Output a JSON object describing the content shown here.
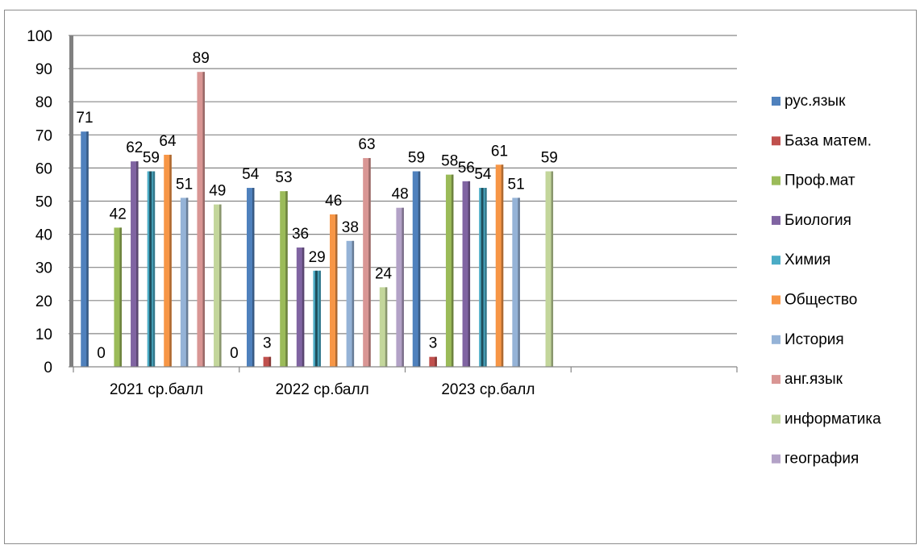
{
  "chart_data": {
    "type": "bar",
    "categories": [
      "2021 ср.балл",
      "2022 ср.балл",
      "2023 ср.балл",
      ""
    ],
    "ylim": [
      0,
      100
    ],
    "yticks": [
      0,
      10,
      20,
      30,
      40,
      50,
      60,
      70,
      80,
      90,
      100
    ],
    "grid": true,
    "legend_position": "right",
    "series": [
      {
        "name": "рус.язык",
        "color": "#4f81bd",
        "values": [
          71,
          54,
          59,
          null
        ]
      },
      {
        "name": "База матем.",
        "color": "#c0504d",
        "values": [
          0,
          3,
          3,
          null
        ]
      },
      {
        "name": "Проф.мат",
        "color": "#9bbb59",
        "values": [
          42,
          53,
          58,
          null
        ]
      },
      {
        "name": "Биология",
        "color": "#8064a2",
        "values": [
          62,
          36,
          56,
          null
        ]
      },
      {
        "name": "Химия",
        "color": "#4bacc6",
        "values": [
          59,
          29,
          54,
          null
        ]
      },
      {
        "name": "Общество",
        "color": "#f79646",
        "values": [
          64,
          46,
          61,
          null
        ]
      },
      {
        "name": "История",
        "color": "#95b3d7",
        "values": [
          51,
          38,
          51,
          null
        ]
      },
      {
        "name": "анг.язык",
        "color": "#d99694",
        "values": [
          89,
          63,
          null,
          null
        ]
      },
      {
        "name": "информатика",
        "color": "#c3d69b",
        "values": [
          49,
          24,
          59,
          null
        ]
      },
      {
        "name": "география",
        "color": "#b3a2c7",
        "values": [
          0,
          48,
          null,
          null
        ]
      }
    ]
  }
}
